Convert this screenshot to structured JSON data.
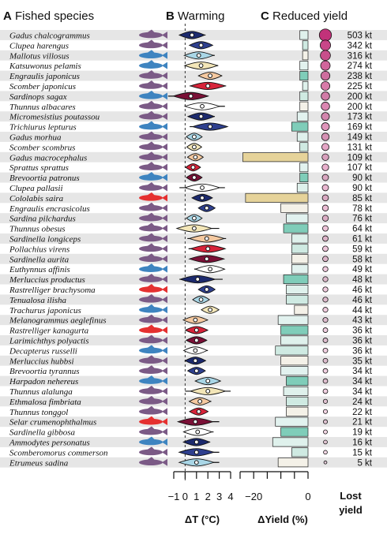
{
  "panels": {
    "a": {
      "letter": "A",
      "title": "Fished species"
    },
    "b": {
      "letter": "B",
      "title": "Warming"
    },
    "c": {
      "letter": "C",
      "title": "Reduced yield"
    }
  },
  "axes": {
    "warming": {
      "label": "ΔT (°C)",
      "ticks": [
        -1,
        0,
        1,
        2,
        3,
        4
      ],
      "tick_labels": [
        "−1",
        "0",
        "1",
        "2",
        "3",
        "4"
      ]
    },
    "yield": {
      "label": "ΔYield (%)",
      "ticks": [
        -20,
        0
      ],
      "tick_labels": [
        "−20",
        "0"
      ]
    },
    "lost": {
      "label_line1": "Lost",
      "label_line2": "yield"
    }
  },
  "colors": {
    "row_stripe": "#e6e6e6",
    "fish_default": "#7b5a86",
    "fish_blue": "#3e84c0",
    "fish_red": "#e53030",
    "bubble": "#c2327a"
  },
  "chart_data": {
    "type": "multi-panel",
    "species": [
      {
        "name": "Gadus chalcogrammus",
        "fish": "purple",
        "dt": 0.6,
        "dt_range": [
          -0.2,
          1.8
        ],
        "yield": -3,
        "lost": "503 kt",
        "lost_kt": 503
      },
      {
        "name": "Clupea harengus",
        "fish": "purple",
        "dt": 1.4,
        "dt_range": [
          0.6,
          2.4
        ],
        "yield": -2,
        "lost": "342 kt",
        "lost_kt": 342
      },
      {
        "name": "Mallotus villosus",
        "fish": "blue",
        "dt": 1.2,
        "dt_range": [
          0.2,
          2.6
        ],
        "yield": -2,
        "lost": "316 kt",
        "lost_kt": 316
      },
      {
        "name": "Katsuwonus pelamis",
        "fish": "blue",
        "dt": 1.4,
        "dt_range": [
          0.1,
          2.9
        ],
        "yield": -3,
        "lost": "274 kt",
        "lost_kt": 274
      },
      {
        "name": "Engraulis japonicus",
        "fish": "purple",
        "dt": 2.2,
        "dt_range": [
          1.4,
          3.2
        ],
        "yield": -3,
        "lost": "238 kt",
        "lost_kt": 238
      },
      {
        "name": "Scomber japonicus",
        "fish": "purple",
        "dt": 2.0,
        "dt_range": [
          0.4,
          3.6
        ],
        "yield": -2,
        "lost": "225 kt",
        "lost_kt": 225
      },
      {
        "name": "Sardinops sagax",
        "fish": "blue",
        "dt": 0.5,
        "dt_range": [
          -1.5,
          2.0
        ],
        "yield": -3,
        "lost": "200 kt",
        "lost_kt": 200
      },
      {
        "name": "Thunnus albacares",
        "fish": "purple",
        "dt": 1.5,
        "dt_range": [
          0.4,
          3.5
        ],
        "yield": -3,
        "lost": "200 kt",
        "lost_kt": 200
      },
      {
        "name": "Micromesistius poutassou",
        "fish": "purple",
        "dt": 1.4,
        "dt_range": [
          0.5,
          2.6
        ],
        "yield": -4,
        "lost": "173 kt",
        "lost_kt": 173
      },
      {
        "name": "Trichiurus lepturus",
        "fish": "blue",
        "dt": 2.2,
        "dt_range": [
          0.4,
          3.5
        ],
        "yield": -6,
        "lost": "169 kt",
        "lost_kt": 169
      },
      {
        "name": "Gadus morhua",
        "fish": "purple",
        "dt": 0.8,
        "dt_range": [
          0.4,
          1.4
        ],
        "yield": -4,
        "lost": "149 kt",
        "lost_kt": 149
      },
      {
        "name": "Scomber scombrus",
        "fish": "purple",
        "dt": 0.8,
        "dt_range": [
          0.4,
          1.3
        ],
        "yield": -3,
        "lost": "131 kt",
        "lost_kt": 131
      },
      {
        "name": "Gadus macrocephalus",
        "fish": "purple",
        "dt": 0.9,
        "dt_range": [
          0.4,
          1.4
        ],
        "yield": -24,
        "lost": "109 kt",
        "lost_kt": 109
      },
      {
        "name": "Sprattus sprattus",
        "fish": "purple",
        "dt": 0.7,
        "dt_range": [
          0.3,
          1.2
        ],
        "yield": -3,
        "lost": "107 kt",
        "lost_kt": 107
      },
      {
        "name": "Brevoortia patronus",
        "fish": "blue",
        "dt": 0.8,
        "dt_range": [
          0.4,
          1.4
        ],
        "yield": -3,
        "lost": "90 kt",
        "lost_kt": 90
      },
      {
        "name": "Clupea pallasii",
        "fish": "purple",
        "dt": 1.5,
        "dt_range": [
          -0.5,
          3.5
        ],
        "yield": -4,
        "lost": "90 kt",
        "lost_kt": 90
      },
      {
        "name": "Cololabis saira",
        "fish": "red",
        "dt": 1.5,
        "dt_range": [
          0.8,
          2.3
        ],
        "yield": -23,
        "lost": "85 kt",
        "lost_kt": 85
      },
      {
        "name": "Engraulis encrasicolus",
        "fish": "purple",
        "dt": 1.9,
        "dt_range": [
          1.4,
          2.5
        ],
        "yield": -10,
        "lost": "78 kt",
        "lost_kt": 78
      },
      {
        "name": "Sardina pilchardus",
        "fish": "purple",
        "dt": 0.8,
        "dt_range": [
          0.3,
          1.3
        ],
        "yield": -8,
        "lost": "76 kt",
        "lost_kt": 76
      },
      {
        "name": "Thunnus obesus",
        "fish": "purple",
        "dt": 0.8,
        "dt_range": [
          -0.6,
          3.0
        ],
        "yield": -9,
        "lost": "64 kt",
        "lost_kt": 64
      },
      {
        "name": "Sardinella longiceps",
        "fish": "purple",
        "dt": 1.9,
        "dt_range": [
          0.2,
          3.6
        ],
        "yield": -6,
        "lost": "61 kt",
        "lost_kt": 61
      },
      {
        "name": "Pollachius virens",
        "fish": "purple",
        "dt": 2.0,
        "dt_range": [
          0.3,
          3.5
        ],
        "yield": -6,
        "lost": "59 kt",
        "lost_kt": 59
      },
      {
        "name": "Sardinella aurita",
        "fish": "purple",
        "dt": 1.9,
        "dt_range": [
          0.4,
          3.4
        ],
        "yield": -6,
        "lost": "58 kt",
        "lost_kt": 58
      },
      {
        "name": "Euthynnus affinis",
        "fish": "blue",
        "dt": 2.2,
        "dt_range": [
          0.8,
          3.2
        ],
        "yield": -6,
        "lost": "49 kt",
        "lost_kt": 49
      },
      {
        "name": "Merluccius productus",
        "fish": "purple",
        "dt": 1.1,
        "dt_range": [
          -0.5,
          3.3
        ],
        "yield": -9,
        "lost": "48 kt",
        "lost_kt": 48
      },
      {
        "name": "Rastrelliger brachysoma",
        "fish": "red",
        "dt": 1.9,
        "dt_range": [
          1.4,
          2.5
        ],
        "yield": -8,
        "lost": "46 kt",
        "lost_kt": 46
      },
      {
        "name": "Tenualosa ilisha",
        "fish": "purple",
        "dt": 1.4,
        "dt_range": [
          0.9,
          2.0
        ],
        "yield": -8,
        "lost": "46 kt",
        "lost_kt": 46
      },
      {
        "name": "Trachurus japonicus",
        "fish": "blue",
        "dt": 2.2,
        "dt_range": [
          1.6,
          2.8
        ],
        "yield": -5,
        "lost": "44 kt",
        "lost_kt": 44
      },
      {
        "name": "Melanogrammus aeglefinus",
        "fish": "purple",
        "dt": 0.9,
        "dt_range": [
          0.1,
          2.0
        ],
        "yield": -11,
        "lost": "43 kt",
        "lost_kt": 43
      },
      {
        "name": "Rastrelliger kanagurta",
        "fish": "red",
        "dt": 1.0,
        "dt_range": [
          0.3,
          2.0
        ],
        "yield": -10,
        "lost": "36 kt",
        "lost_kt": 36
      },
      {
        "name": "Larimichthys polyactis",
        "fish": "purple",
        "dt": 1.0,
        "dt_range": [
          0.4,
          1.9
        ],
        "yield": -10,
        "lost": "36 kt",
        "lost_kt": 36
      },
      {
        "name": "Decapterus russelli",
        "fish": "blue",
        "dt": 0.9,
        "dt_range": [
          0.2,
          2.0
        ],
        "yield": -12,
        "lost": "36 kt",
        "lost_kt": 36
      },
      {
        "name": "Merluccius hubbsi",
        "fish": "purple",
        "dt": 0.9,
        "dt_range": [
          0.3,
          1.8
        ],
        "yield": -10,
        "lost": "35 kt",
        "lost_kt": 35
      },
      {
        "name": "Brevoortia tyrannus",
        "fish": "purple",
        "dt": 1.0,
        "dt_range": [
          0.4,
          1.6
        ],
        "yield": -10,
        "lost": "34 kt",
        "lost_kt": 34
      },
      {
        "name": "Harpadon nehereus",
        "fish": "blue",
        "dt": 2.0,
        "dt_range": [
          1.0,
          3.0
        ],
        "yield": -8,
        "lost": "34 kt",
        "lost_kt": 34
      },
      {
        "name": "Thunnus alalunga",
        "fish": "purple",
        "dt": 2.0,
        "dt_range": [
          0.0,
          4.0
        ],
        "yield": -9,
        "lost": "34 kt",
        "lost_kt": 34
      },
      {
        "name": "Ethmalosa fimbriata",
        "fish": "purple",
        "dt": 1.3,
        "dt_range": [
          0.7,
          2.3
        ],
        "yield": -8,
        "lost": "24 kt",
        "lost_kt": 24
      },
      {
        "name": "Thunnus tonggol",
        "fish": "purple",
        "dt": 1.2,
        "dt_range": [
          0.7,
          2.0
        ],
        "yield": -8,
        "lost": "22 kt",
        "lost_kt": 22
      },
      {
        "name": "Selar crumenophthalmus",
        "fish": "red",
        "dt": 0.9,
        "dt_range": [
          0.0,
          3.0
        ],
        "yield": -12,
        "lost": "21 kt",
        "lost_kt": 21
      },
      {
        "name": "Sardinella gibbosa",
        "fish": "purple",
        "dt": 1.1,
        "dt_range": [
          0.2,
          2.5
        ],
        "yield": -10,
        "lost": "19 kt",
        "lost_kt": 19
      },
      {
        "name": "Ammodytes personatus",
        "fish": "blue",
        "dt": 1.0,
        "dt_range": [
          0.1,
          2.2
        ],
        "yield": -13,
        "lost": "16 kt",
        "lost_kt": 16
      },
      {
        "name": "Scomberomorus commerson",
        "fish": "purple",
        "dt": 1.0,
        "dt_range": [
          -0.3,
          3.0
        ],
        "yield": -6,
        "lost": "15 kt",
        "lost_kt": 15
      },
      {
        "name": "Etrumeus sadina",
        "fish": "purple",
        "dt": 1.0,
        "dt_range": [
          -0.3,
          3.0
        ],
        "yield": -11,
        "lost": "5 kt",
        "lost_kt": 5
      }
    ],
    "warming_xlim": [
      -1,
      4
    ],
    "yield_xlim": [
      -25,
      0
    ],
    "grid": false
  }
}
